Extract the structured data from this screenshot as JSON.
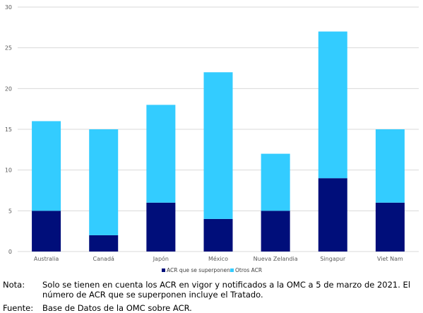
{
  "chart_data": {
    "type": "bar",
    "stacked": true,
    "categories": [
      "Australia",
      "Canadá",
      "Japón",
      "México",
      "Nueva Zelandia",
      "Singapur",
      "Viet Nam"
    ],
    "series": [
      {
        "name": "ACR que se superponen",
        "values": [
          5,
          2,
          6,
          4,
          5,
          9,
          6
        ],
        "color": "#000e7a"
      },
      {
        "name": "Otros ACR",
        "values": [
          11,
          13,
          12,
          18,
          7,
          18,
          9
        ],
        "color": "#33ccff"
      }
    ],
    "ylim": [
      0,
      30
    ],
    "yticks": [
      0,
      5,
      10,
      15,
      20,
      25,
      30
    ],
    "grid": true,
    "legend": "bottom-center"
  },
  "notes": {
    "nota_label": "Nota:",
    "nota_text": "Solo se tienen en cuenta los ACR en vigor y notificados a la OMC a 5 de marzo de 2021. El número de ACR que se superponen incluye el Tratado.",
    "fuente_label": "Fuente:",
    "fuente_text": "Base de Datos de la OMC sobre ACR."
  }
}
